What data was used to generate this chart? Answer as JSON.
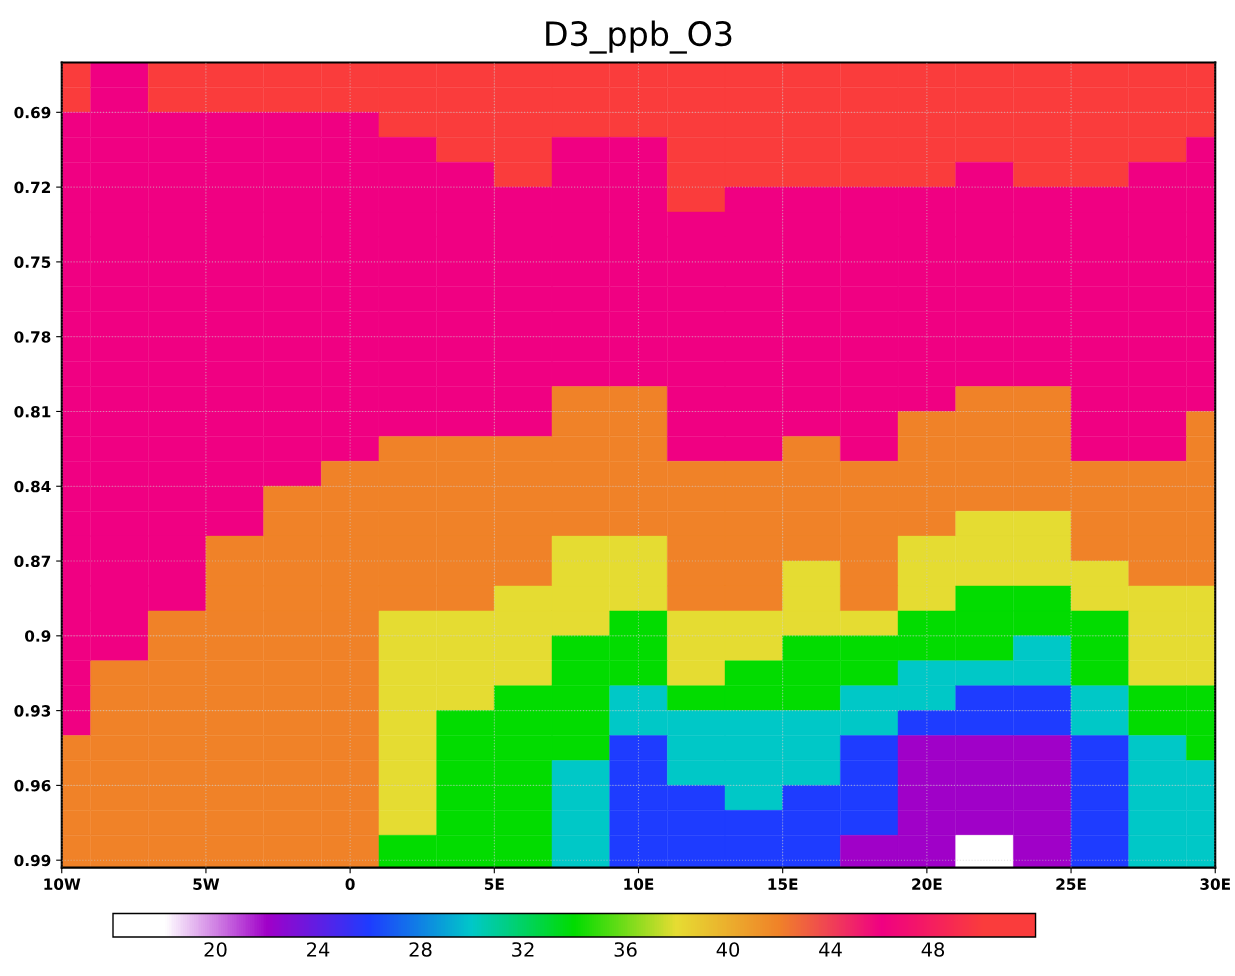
{
  "chart_data": {
    "type": "heatmap",
    "title": "D3_ppb_O3",
    "x": [
      -10,
      -8,
      -6,
      -4,
      -2,
      0,
      2,
      4,
      6,
      8,
      10,
      12,
      14,
      16,
      18,
      20,
      22,
      24,
      26,
      28,
      30
    ],
    "y": [
      0.675,
      0.685,
      0.695,
      0.705,
      0.715,
      0.725,
      0.735,
      0.745,
      0.755,
      0.765,
      0.775,
      0.785,
      0.795,
      0.805,
      0.815,
      0.825,
      0.835,
      0.845,
      0.855,
      0.865,
      0.875,
      0.885,
      0.895,
      0.905,
      0.915,
      0.925,
      0.935,
      0.945,
      0.955,
      0.965,
      0.975,
      0.985
    ],
    "cells": [
      [
        50,
        46,
        50,
        50,
        50,
        50,
        50,
        50,
        50,
        50,
        50,
        50,
        50,
        50,
        50,
        50,
        50,
        50,
        50,
        50,
        50
      ],
      [
        50,
        46,
        50,
        50,
        50,
        50,
        50,
        50,
        50,
        50,
        50,
        50,
        50,
        50,
        50,
        50,
        50,
        50,
        50,
        50,
        50
      ],
      [
        46,
        46,
        46,
        46,
        46,
        46,
        50,
        50,
        50,
        50,
        50,
        50,
        50,
        50,
        50,
        50,
        50,
        50,
        50,
        50,
        50
      ],
      [
        46,
        46,
        46,
        46,
        46,
        46,
        46,
        50,
        50,
        46,
        46,
        50,
        50,
        50,
        50,
        50,
        50,
        50,
        50,
        50,
        46
      ],
      [
        46,
        46,
        46,
        46,
        46,
        46,
        46,
        46,
        50,
        46,
        46,
        50,
        50,
        50,
        50,
        50,
        46,
        50,
        50,
        46,
        46
      ],
      [
        46,
        46,
        46,
        46,
        46,
        46,
        46,
        46,
        46,
        46,
        46,
        50,
        46,
        46,
        46,
        46,
        46,
        46,
        46,
        46,
        46
      ],
      [
        46,
        46,
        46,
        46,
        46,
        46,
        46,
        46,
        46,
        46,
        46,
        46,
        46,
        46,
        46,
        46,
        46,
        46,
        46,
        46,
        46
      ],
      [
        46,
        46,
        46,
        46,
        46,
        46,
        46,
        46,
        46,
        46,
        46,
        46,
        46,
        46,
        46,
        46,
        46,
        46,
        46,
        46,
        46
      ],
      [
        46,
        46,
        46,
        46,
        46,
        46,
        46,
        46,
        46,
        46,
        46,
        46,
        46,
        46,
        46,
        46,
        46,
        46,
        46,
        46,
        46
      ],
      [
        46,
        46,
        46,
        46,
        46,
        46,
        46,
        46,
        46,
        46,
        46,
        46,
        46,
        46,
        46,
        46,
        46,
        46,
        46,
        46,
        46
      ],
      [
        46,
        46,
        46,
        46,
        46,
        46,
        46,
        46,
        46,
        46,
        46,
        46,
        46,
        46,
        46,
        46,
        46,
        46,
        46,
        46,
        46
      ],
      [
        46,
        46,
        46,
        46,
        46,
        46,
        46,
        46,
        46,
        46,
        46,
        46,
        46,
        46,
        46,
        46,
        46,
        46,
        46,
        46,
        46
      ],
      [
        46,
        46,
        46,
        46,
        46,
        46,
        46,
        46,
        46,
        46,
        46,
        46,
        46,
        46,
        46,
        46,
        46,
        46,
        46,
        46,
        46
      ],
      [
        46,
        46,
        46,
        46,
        46,
        46,
        46,
        46,
        46,
        42,
        42,
        46,
        46,
        46,
        46,
        46,
        42,
        42,
        46,
        46,
        46
      ],
      [
        46,
        46,
        46,
        46,
        46,
        46,
        46,
        46,
        46,
        42,
        42,
        46,
        46,
        46,
        46,
        42,
        42,
        42,
        46,
        46,
        42
      ],
      [
        46,
        46,
        46,
        46,
        46,
        46,
        42,
        42,
        42,
        42,
        42,
        46,
        46,
        42,
        46,
        42,
        42,
        42,
        46,
        46,
        42
      ],
      [
        46,
        46,
        46,
        46,
        46,
        42,
        42,
        42,
        42,
        42,
        42,
        42,
        42,
        42,
        42,
        42,
        42,
        42,
        42,
        42,
        42
      ],
      [
        46,
        46,
        46,
        46,
        42,
        42,
        42,
        42,
        42,
        42,
        42,
        42,
        42,
        42,
        42,
        42,
        42,
        42,
        42,
        42,
        42
      ],
      [
        46,
        46,
        46,
        46,
        42,
        42,
        42,
        42,
        42,
        42,
        42,
        42,
        42,
        42,
        42,
        42,
        38,
        38,
        42,
        42,
        42
      ],
      [
        46,
        46,
        46,
        42,
        42,
        42,
        42,
        42,
        42,
        38,
        38,
        42,
        42,
        42,
        42,
        38,
        38,
        38,
        42,
        42,
        42
      ],
      [
        46,
        46,
        46,
        42,
        42,
        42,
        42,
        42,
        42,
        38,
        38,
        42,
        42,
        38,
        42,
        38,
        38,
        38,
        38,
        42,
        42
      ],
      [
        46,
        46,
        46,
        42,
        42,
        42,
        42,
        42,
        38,
        38,
        38,
        42,
        42,
        38,
        42,
        38,
        34,
        34,
        38,
        38,
        38
      ],
      [
        46,
        46,
        42,
        42,
        42,
        42,
        38,
        38,
        38,
        38,
        34,
        38,
        38,
        38,
        38,
        34,
        34,
        34,
        34,
        38,
        38
      ],
      [
        46,
        46,
        42,
        42,
        42,
        42,
        38,
        38,
        38,
        34,
        34,
        38,
        38,
        34,
        34,
        34,
        34,
        30,
        34,
        38,
        38
      ],
      [
        46,
        42,
        42,
        42,
        42,
        42,
        38,
        38,
        38,
        34,
        34,
        38,
        34,
        34,
        34,
        30,
        30,
        30,
        34,
        38,
        38
      ],
      [
        46,
        42,
        42,
        42,
        42,
        42,
        38,
        38,
        34,
        34,
        30,
        34,
        34,
        34,
        30,
        30,
        26,
        26,
        30,
        34,
        34
      ],
      [
        46,
        42,
        42,
        42,
        42,
        42,
        38,
        34,
        34,
        34,
        30,
        30,
        30,
        30,
        30,
        26,
        26,
        26,
        30,
        34,
        34
      ],
      [
        42,
        42,
        42,
        42,
        42,
        42,
        38,
        34,
        34,
        34,
        26,
        30,
        30,
        30,
        26,
        22,
        22,
        22,
        26,
        30,
        34
      ],
      [
        42,
        42,
        42,
        42,
        42,
        42,
        38,
        34,
        34,
        30,
        26,
        30,
        30,
        30,
        26,
        22,
        22,
        22,
        26,
        30,
        30
      ],
      [
        42,
        42,
        42,
        42,
        42,
        42,
        38,
        34,
        34,
        30,
        26,
        26,
        30,
        26,
        26,
        22,
        22,
        22,
        26,
        30,
        30
      ],
      [
        42,
        42,
        42,
        42,
        42,
        42,
        38,
        34,
        34,
        30,
        26,
        26,
        26,
        26,
        26,
        22,
        22,
        22,
        26,
        30,
        30
      ],
      [
        42,
        42,
        42,
        42,
        42,
        42,
        34,
        34,
        34,
        30,
        26,
        26,
        26,
        26,
        22,
        22,
        18,
        22,
        26,
        30,
        30
      ]
    ],
    "colors": [
      "#ffffff",
      "#a000c8",
      "#1e3cff",
      "#00c8c8",
      "#00dc00",
      "#e6dc32",
      "#f08228",
      "#f00082",
      "#fa3c3c"
    ],
    "clim": [
      16,
      52
    ],
    "cticks": [
      20,
      24,
      28,
      32,
      36,
      40,
      44,
      48
    ],
    "xlim": [
      -10,
      30
    ],
    "xticks": [
      {
        "value": -10,
        "label": "10W"
      },
      {
        "value": -5,
        "label": "5W"
      },
      {
        "value": 0,
        "label": "0"
      },
      {
        "value": 5,
        "label": "5E"
      },
      {
        "value": 10,
        "label": "10E"
      },
      {
        "value": 15,
        "label": "15E"
      },
      {
        "value": 20,
        "label": "20E"
      },
      {
        "value": 25,
        "label": "25E"
      },
      {
        "value": 30,
        "label": "30E"
      }
    ],
    "ylim": [
      0.993,
      0.67
    ],
    "yticks": [
      0.69,
      0.72,
      0.75,
      0.78,
      0.81,
      0.84,
      0.87,
      0.9,
      0.93,
      0.96,
      0.99
    ],
    "grid": true
  }
}
